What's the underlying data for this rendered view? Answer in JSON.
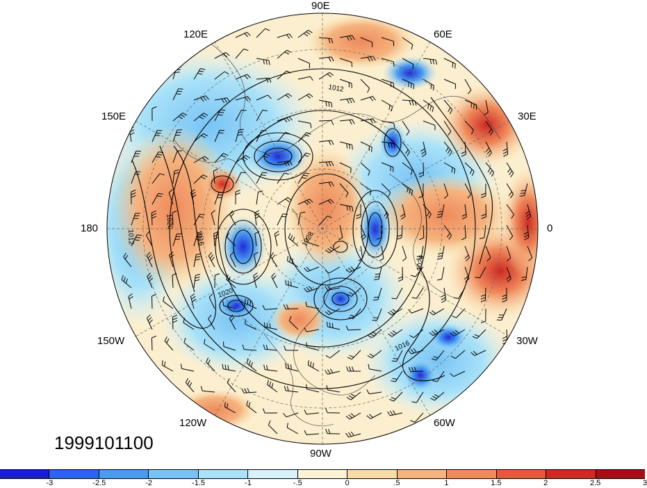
{
  "map": {
    "projection": "north-polar-stereographic",
    "longitude_labels": [
      {
        "id": "lon-90e",
        "text": "90E"
      },
      {
        "id": "lon-60e",
        "text": "60E"
      },
      {
        "id": "lon-30e",
        "text": "30E"
      },
      {
        "id": "lon-0",
        "text": "0"
      },
      {
        "id": "lon-30w",
        "text": "30W"
      },
      {
        "id": "lon-60w",
        "text": "60W"
      },
      {
        "id": "lon-90w",
        "text": "90W"
      },
      {
        "id": "lon-120w",
        "text": "120W"
      },
      {
        "id": "lon-150w",
        "text": "150W"
      },
      {
        "id": "lon-180",
        "text": "180"
      },
      {
        "id": "lon-150e",
        "text": "150E"
      },
      {
        "id": "lon-120e",
        "text": "120E"
      }
    ],
    "isobar_labels": [
      "1012",
      "1016",
      "1020",
      "1024",
      "1028"
    ],
    "colors": {
      "negative_strong": "#1f2bd9",
      "positive_strong": "#e23a2e",
      "neutral": "#fdf6dc"
    }
  },
  "date_stamp": "1999101100",
  "colorbar": {
    "colors": [
      "#1a1ad9",
      "#2d64ee",
      "#4a9cf0",
      "#78c3f5",
      "#a9e2f8",
      "#d6f1f9",
      "#fcf3d6",
      "#f8dca6",
      "#f5b37e",
      "#ef8a5c",
      "#e45a3c",
      "#cc2b23",
      "#a50f15"
    ],
    "tick_labels": [
      "-3",
      "-2.5",
      "-2",
      "-1.5",
      "-1",
      "-.5",
      "0",
      ".5",
      "1",
      "1.5",
      "2",
      "2.5",
      "3"
    ]
  }
}
